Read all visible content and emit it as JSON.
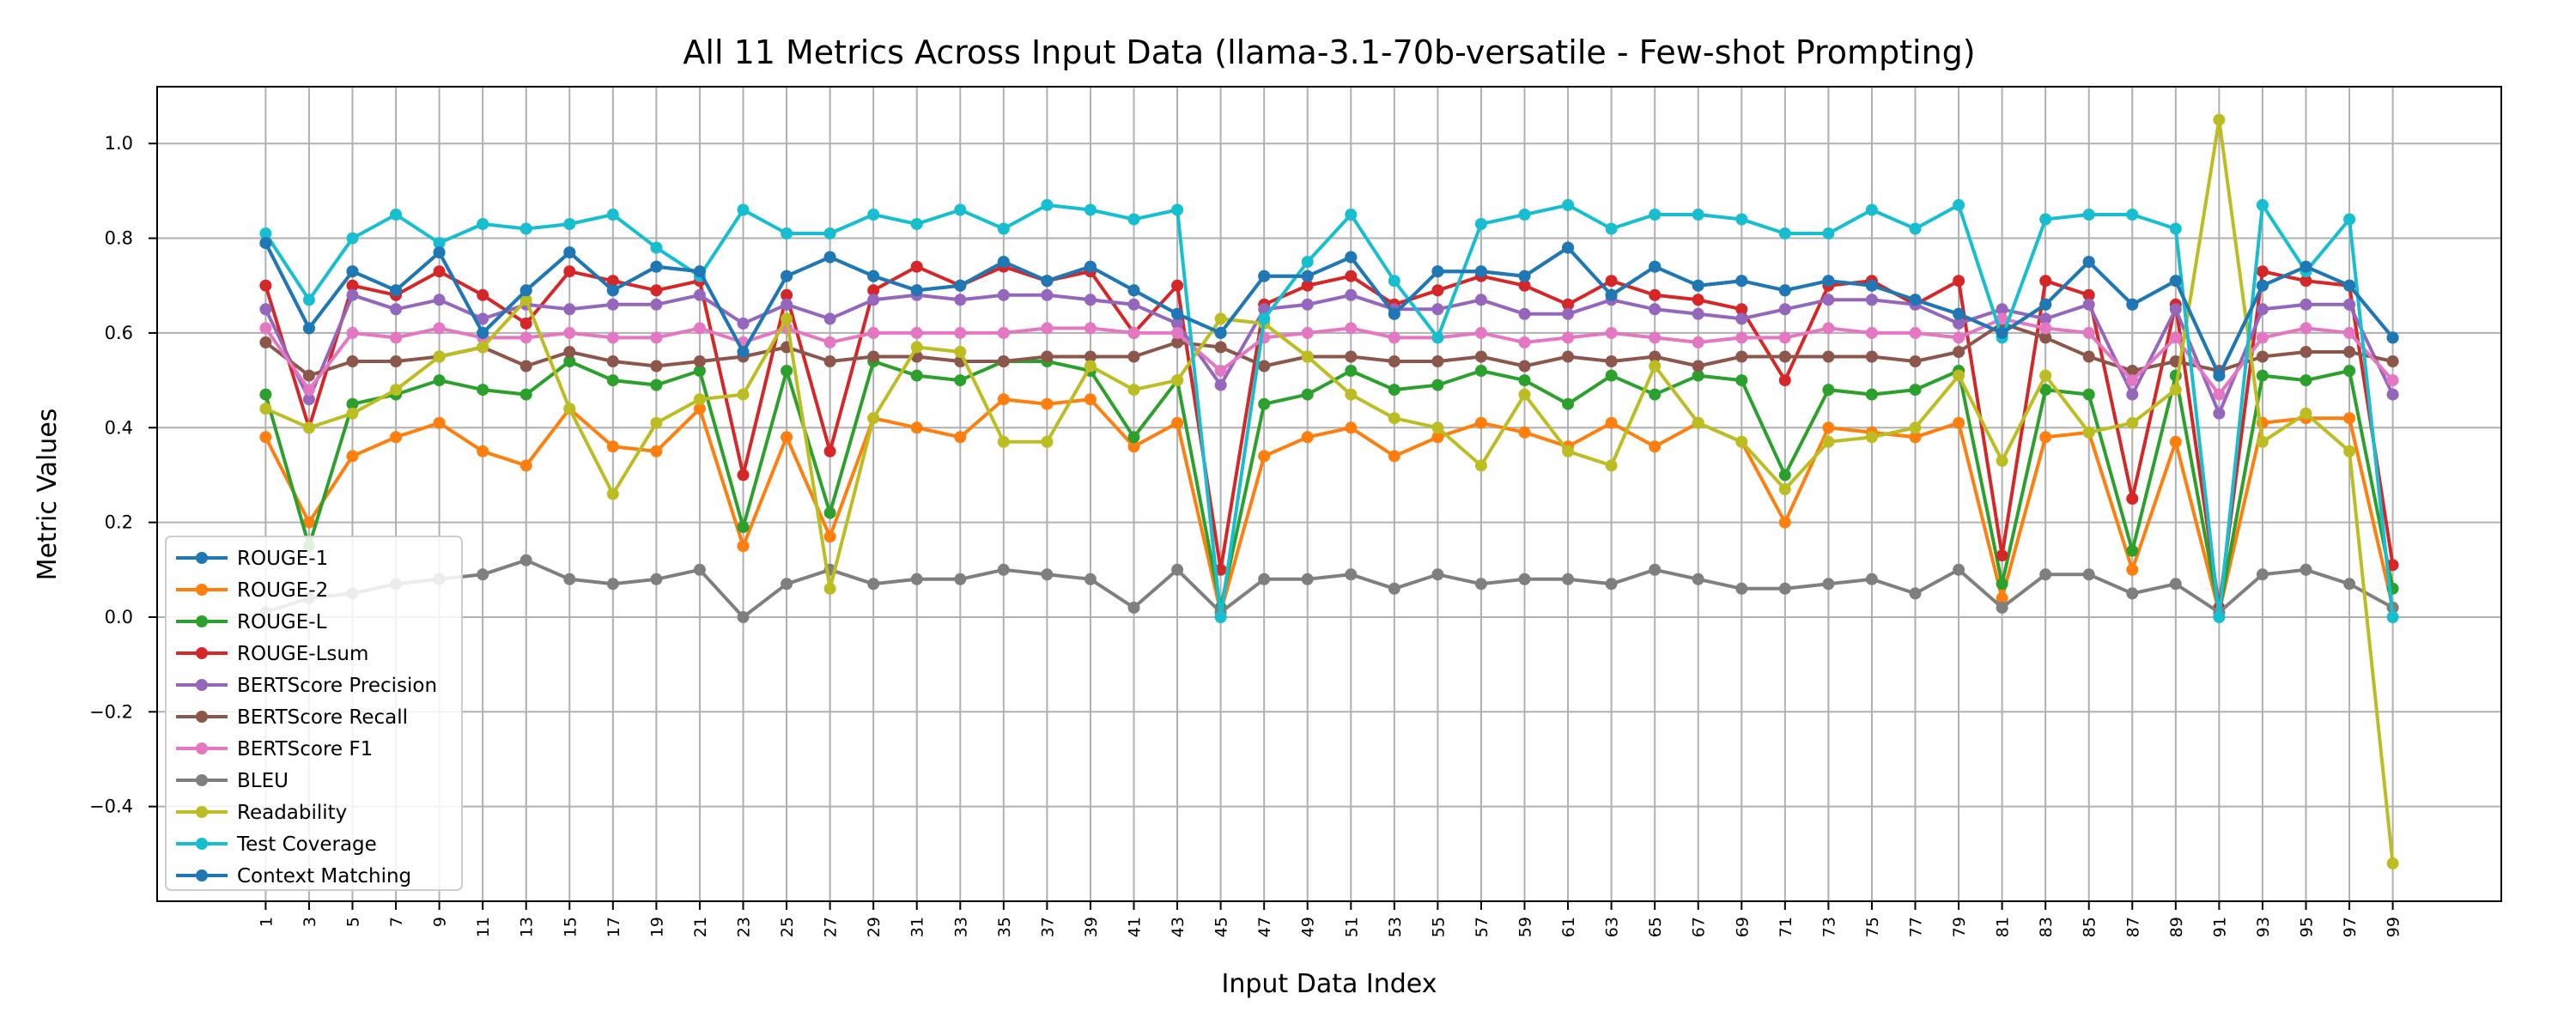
{
  "chart_data": {
    "type": "line",
    "title": "All 11 Metrics Across Input Data (llama-3.1-70b-versatile - Few-shot Prompting)",
    "xlabel": "Input Data Index",
    "ylabel": "Metric Values",
    "x": [
      1,
      3,
      5,
      7,
      9,
      11,
      13,
      15,
      17,
      19,
      21,
      23,
      25,
      27,
      29,
      31,
      33,
      35,
      37,
      39,
      41,
      43,
      45,
      47,
      49,
      51,
      53,
      55,
      57,
      59,
      61,
      63,
      65,
      67,
      69,
      71,
      73,
      75,
      77,
      79,
      81,
      83,
      85,
      87,
      89,
      91,
      93,
      95,
      97,
      99
    ],
    "x_ticks": [
      "1",
      "3",
      "5",
      "7",
      "9",
      "11",
      "13",
      "15",
      "17",
      "19",
      "21",
      "23",
      "25",
      "27",
      "29",
      "31",
      "33",
      "35",
      "37",
      "39",
      "41",
      "43",
      "45",
      "47",
      "49",
      "51",
      "53",
      "55",
      "57",
      "59",
      "61",
      "63",
      "65",
      "67",
      "69",
      "71",
      "73",
      "75",
      "77",
      "79",
      "81",
      "83",
      "85",
      "87",
      "89",
      "91",
      "93",
      "95",
      "97",
      "99"
    ],
    "xlim": [
      -4.0,
      104.0
    ],
    "y_ticks": [
      "−0.4",
      "−0.2",
      "0.0",
      "0.2",
      "0.4",
      "0.6",
      "0.8",
      "1.0"
    ],
    "y_tick_values": [
      -0.4,
      -0.2,
      0.0,
      0.2,
      0.4,
      0.6,
      0.8,
      1.0
    ],
    "ylim": [
      -0.6,
      1.12
    ],
    "grid": true,
    "legend_position": "lower-left",
    "series": [
      {
        "name": "ROUGE-1",
        "color": "#1f77b4",
        "values": [
          0.79,
          0.61,
          0.73,
          0.69,
          0.77,
          0.6,
          0.69,
          0.77,
          0.69,
          0.74,
          0.73,
          0.56,
          0.72,
          0.76,
          0.72,
          0.69,
          0.7,
          0.75,
          0.71,
          0.74,
          0.69,
          0.64,
          0.6,
          0.72,
          0.72,
          0.76,
          0.64,
          0.73,
          0.73,
          0.72,
          0.78,
          0.68,
          0.74,
          0.7,
          0.71,
          0.69,
          0.71,
          0.7,
          0.67,
          0.64,
          0.6,
          0.66,
          0.75,
          0.66,
          0.71,
          0.51,
          0.7,
          0.74,
          0.7,
          0.59
        ]
      },
      {
        "name": "ROUGE-2",
        "color": "#ff7f0e",
        "values": [
          0.38,
          0.2,
          0.34,
          0.38,
          0.41,
          0.35,
          0.32,
          0.44,
          0.36,
          0.35,
          0.44,
          0.15,
          0.38,
          0.17,
          0.42,
          0.4,
          0.38,
          0.46,
          0.45,
          0.46,
          0.36,
          0.41,
          0.01,
          0.34,
          0.38,
          0.4,
          0.34,
          0.38,
          0.41,
          0.39,
          0.36,
          0.41,
          0.36,
          0.41,
          0.37,
          0.2,
          0.4,
          0.39,
          0.38,
          0.41,
          0.04,
          0.38,
          0.39,
          0.1,
          0.37,
          0.01,
          0.41,
          0.42,
          0.42,
          0.02
        ]
      },
      {
        "name": "ROUGE-L",
        "color": "#2ca02c",
        "values": [
          0.47,
          0.15,
          0.45,
          0.47,
          0.5,
          0.48,
          0.47,
          0.54,
          0.5,
          0.49,
          0.52,
          0.19,
          0.52,
          0.22,
          0.54,
          0.51,
          0.5,
          0.54,
          0.54,
          0.52,
          0.38,
          0.5,
          0.02,
          0.45,
          0.47,
          0.52,
          0.48,
          0.49,
          0.52,
          0.5,
          0.45,
          0.51,
          0.47,
          0.51,
          0.5,
          0.3,
          0.48,
          0.47,
          0.48,
          0.52,
          0.07,
          0.48,
          0.47,
          0.14,
          0.51,
          0.01,
          0.51,
          0.5,
          0.52,
          0.06
        ]
      },
      {
        "name": "ROUGE-Lsum",
        "color": "#d62728",
        "values": [
          0.7,
          0.4,
          0.7,
          0.68,
          0.73,
          0.68,
          0.62,
          0.73,
          0.71,
          0.69,
          0.71,
          0.3,
          0.68,
          0.35,
          0.69,
          0.74,
          0.7,
          0.74,
          0.71,
          0.73,
          0.6,
          0.7,
          0.1,
          0.66,
          0.7,
          0.72,
          0.66,
          0.69,
          0.72,
          0.7,
          0.66,
          0.71,
          0.68,
          0.67,
          0.65,
          0.5,
          0.7,
          0.71,
          0.66,
          0.71,
          0.13,
          0.71,
          0.68,
          0.25,
          0.66,
          0.02,
          0.73,
          0.71,
          0.7,
          0.11
        ]
      },
      {
        "name": "BERTScore Precision",
        "color": "#9467bd",
        "values": [
          0.65,
          0.46,
          0.68,
          0.65,
          0.67,
          0.63,
          0.66,
          0.65,
          0.66,
          0.66,
          0.68,
          0.62,
          0.66,
          0.63,
          0.67,
          0.68,
          0.67,
          0.68,
          0.68,
          0.67,
          0.66,
          0.62,
          0.49,
          0.65,
          0.66,
          0.68,
          0.65,
          0.65,
          0.67,
          0.64,
          0.64,
          0.67,
          0.65,
          0.64,
          0.63,
          0.65,
          0.67,
          0.67,
          0.66,
          0.62,
          0.65,
          0.63,
          0.66,
          0.47,
          0.65,
          0.43,
          0.65,
          0.66,
          0.66,
          0.47
        ]
      },
      {
        "name": "BERTScore Recall",
        "color": "#8c564b",
        "values": [
          0.58,
          0.51,
          0.54,
          0.54,
          0.55,
          0.57,
          0.53,
          0.56,
          0.54,
          0.53,
          0.54,
          0.55,
          0.57,
          0.54,
          0.55,
          0.55,
          0.54,
          0.54,
          0.55,
          0.55,
          0.55,
          0.58,
          0.57,
          0.53,
          0.55,
          0.55,
          0.54,
          0.54,
          0.55,
          0.53,
          0.55,
          0.54,
          0.55,
          0.53,
          0.55,
          0.55,
          0.55,
          0.55,
          0.54,
          0.56,
          0.62,
          0.59,
          0.55,
          0.52,
          0.54,
          0.52,
          0.55,
          0.56,
          0.56,
          0.54
        ]
      },
      {
        "name": "BERTScore F1",
        "color": "#e377c2",
        "values": [
          0.61,
          0.48,
          0.6,
          0.59,
          0.61,
          0.59,
          0.59,
          0.6,
          0.59,
          0.59,
          0.61,
          0.58,
          0.61,
          0.58,
          0.6,
          0.6,
          0.6,
          0.6,
          0.61,
          0.61,
          0.6,
          0.6,
          0.52,
          0.59,
          0.6,
          0.61,
          0.59,
          0.59,
          0.6,
          0.58,
          0.59,
          0.6,
          0.59,
          0.58,
          0.59,
          0.59,
          0.61,
          0.6,
          0.6,
          0.59,
          0.63,
          0.61,
          0.6,
          0.5,
          0.59,
          0.47,
          0.59,
          0.61,
          0.6,
          0.5
        ]
      },
      {
        "name": "BLEU",
        "color": "#7f7f7f",
        "values": [
          0.01,
          0.04,
          0.05,
          0.07,
          0.08,
          0.09,
          0.12,
          0.08,
          0.07,
          0.08,
          0.1,
          0.0,
          0.07,
          0.1,
          0.07,
          0.08,
          0.08,
          0.1,
          0.09,
          0.08,
          0.02,
          0.1,
          0.01,
          0.08,
          0.08,
          0.09,
          0.06,
          0.09,
          0.07,
          0.08,
          0.08,
          0.07,
          0.1,
          0.08,
          0.06,
          0.06,
          0.07,
          0.08,
          0.05,
          0.1,
          0.02,
          0.09,
          0.09,
          0.05,
          0.07,
          0.01,
          0.09,
          0.1,
          0.07,
          0.02
        ]
      },
      {
        "name": "Readability",
        "color": "#bcbd22",
        "values": [
          0.44,
          0.4,
          0.43,
          0.48,
          0.55,
          0.57,
          0.67,
          0.44,
          0.26,
          0.41,
          0.46,
          0.47,
          0.63,
          0.06,
          0.42,
          0.57,
          0.56,
          0.37,
          0.37,
          0.53,
          0.48,
          0.5,
          0.63,
          0.62,
          0.55,
          0.47,
          0.42,
          0.4,
          0.32,
          0.47,
          0.35,
          0.32,
          0.53,
          0.41,
          0.37,
          0.27,
          0.37,
          0.38,
          0.4,
          0.51,
          0.33,
          0.51,
          0.39,
          0.41,
          0.48,
          1.05,
          0.37,
          0.43,
          0.35,
          -0.52
        ]
      },
      {
        "name": "Test Coverage",
        "color": "#17becf",
        "values": [
          0.81,
          0.67,
          0.8,
          0.85,
          0.79,
          0.83,
          0.82,
          0.83,
          0.85,
          0.78,
          0.72,
          0.86,
          0.81,
          0.81,
          0.85,
          0.83,
          0.86,
          0.82,
          0.87,
          0.86,
          0.84,
          0.86,
          0.0,
          0.63,
          0.75,
          0.85,
          0.71,
          0.59,
          0.83,
          0.85,
          0.87,
          0.82,
          0.85,
          0.85,
          0.84,
          0.81,
          0.81,
          0.86,
          0.82,
          0.87,
          0.59,
          0.84,
          0.85,
          0.85,
          0.82,
          0.0,
          0.87,
          0.73,
          0.84,
          0.0
        ]
      },
      {
        "name": "Context Matching",
        "color": "#1f77b4",
        "values": [
          0.79,
          0.61,
          0.73,
          0.69,
          0.77,
          0.6,
          0.69,
          0.77,
          0.69,
          0.74,
          0.73,
          0.56,
          0.72,
          0.76,
          0.72,
          0.69,
          0.7,
          0.75,
          0.71,
          0.74,
          0.69,
          0.64,
          0.6,
          0.72,
          0.72,
          0.76,
          0.64,
          0.73,
          0.73,
          0.72,
          0.78,
          0.68,
          0.74,
          0.7,
          0.71,
          0.69,
          0.71,
          0.7,
          0.67,
          0.64,
          0.6,
          0.66,
          0.75,
          0.66,
          0.71,
          0.51,
          0.7,
          0.74,
          0.7,
          0.59
        ]
      }
    ]
  }
}
